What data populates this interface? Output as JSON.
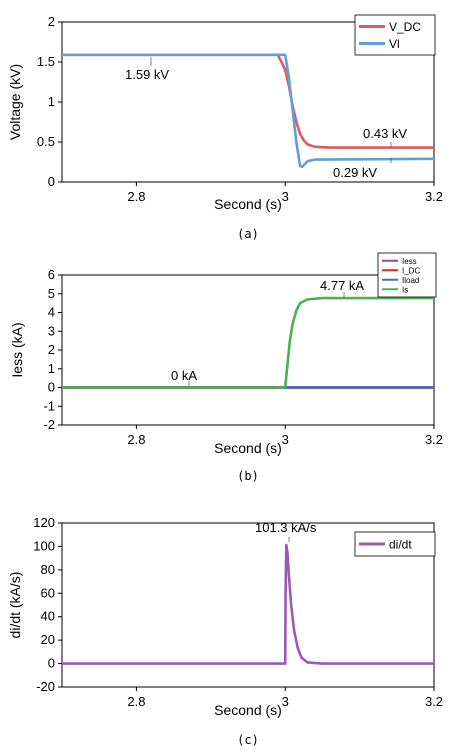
{
  "chart_data": [
    {
      "type": "line",
      "caption": "(a)",
      "xlabel": "Second (s)",
      "ylabel": "Voltage (kV)",
      "xlim": [
        2.7,
        3.2
      ],
      "ylim": [
        0,
        2
      ],
      "xticks": [
        2.8,
        3,
        3.2
      ],
      "yticks": [
        0,
        0.5,
        1,
        1.5,
        2
      ],
      "legend_position": "top-right",
      "series": [
        {
          "name": "V_DC",
          "color": "#e05a5a",
          "points": [
            [
              2.7,
              1.59
            ],
            [
              2.99,
              1.59
            ],
            [
              2.995,
              1.5
            ],
            [
              3.0,
              1.4
            ],
            [
              3.005,
              1.2
            ],
            [
              3.01,
              0.95
            ],
            [
              3.015,
              0.75
            ],
            [
              3.02,
              0.6
            ],
            [
              3.025,
              0.52
            ],
            [
              3.03,
              0.47
            ],
            [
              3.04,
              0.44
            ],
            [
              3.06,
              0.43
            ],
            [
              3.2,
              0.43
            ]
          ]
        },
        {
          "name": "Vl",
          "color": "#5f9fd6",
          "points": [
            [
              2.7,
              1.59
            ],
            [
              3.0,
              1.59
            ],
            [
              3.005,
              1.3
            ],
            [
              3.01,
              0.9
            ],
            [
              3.015,
              0.5
            ],
            [
              3.02,
              0.2
            ],
            [
              3.023,
              0.19
            ],
            [
              3.03,
              0.26
            ],
            [
              3.04,
              0.28
            ],
            [
              3.2,
              0.29
            ]
          ]
        }
      ],
      "annotations": [
        {
          "text": "1.59 kV",
          "x": 2.745,
          "y": 1.59
        },
        {
          "text": "0.43 kV",
          "x": 3.1,
          "y": 0.43
        },
        {
          "text": "0.29 kV",
          "x": 3.1,
          "y": 0.29
        }
      ]
    },
    {
      "type": "line",
      "caption": "(b)",
      "xlabel": "Second (s)",
      "ylabel": "Iess (kA)",
      "xlim": [
        2.7,
        3.2
      ],
      "ylim": [
        -2,
        6
      ],
      "xticks": [
        2.8,
        3,
        3.2
      ],
      "yticks": [
        -2,
        -1,
        0,
        1,
        2,
        3,
        4,
        5,
        6
      ],
      "legend_position": "top-right",
      "series": [
        {
          "name": "Iess",
          "color": "#8e44ad",
          "points": [
            [
              2.7,
              0
            ],
            [
              3.2,
              0
            ]
          ]
        },
        {
          "name": "I_DC",
          "color": "#d62728",
          "points": [
            [
              2.7,
              0
            ],
            [
              3.2,
              0
            ]
          ]
        },
        {
          "name": "Iload",
          "color": "#3a6fc4",
          "points": [
            [
              2.7,
              0
            ],
            [
              3.2,
              0
            ]
          ]
        },
        {
          "name": "Is",
          "color": "#4caf50",
          "points": [
            [
              2.7,
              0
            ],
            [
              3.0,
              0
            ],
            [
              3.003,
              1.2
            ],
            [
              3.006,
              2.4
            ],
            [
              3.01,
              3.4
            ],
            [
              3.015,
              4.1
            ],
            [
              3.02,
              4.5
            ],
            [
              3.03,
              4.7
            ],
            [
              3.05,
              4.77
            ],
            [
              3.2,
              4.77
            ]
          ]
        }
      ],
      "annotations": [
        {
          "text": "0 kA",
          "x": 2.87,
          "y": 0
        },
        {
          "text": "4.77 kA",
          "x": 3.075,
          "y": 4.77
        }
      ]
    },
    {
      "type": "line",
      "caption": "(c)",
      "xlabel": "Second (s)",
      "ylabel": "di/dt (kA/s)",
      "xlim": [
        2.7,
        3.2
      ],
      "ylim": [
        -20,
        120
      ],
      "xticks": [
        2.8,
        3,
        3.2
      ],
      "yticks": [
        -20,
        0,
        20,
        40,
        60,
        80,
        100,
        120
      ],
      "legend_position": "top-right",
      "series": [
        {
          "name": "di/dt",
          "color": "#9b59b6",
          "points": [
            [
              2.7,
              0
            ],
            [
              3.0,
              0
            ],
            [
              3.0005,
              60
            ],
            [
              3.0015,
              101.3
            ],
            [
              3.003,
              95
            ],
            [
              3.005,
              75
            ],
            [
              3.008,
              50
            ],
            [
              3.012,
              28
            ],
            [
              3.017,
              13
            ],
            [
              3.022,
              5
            ],
            [
              3.03,
              1
            ],
            [
              3.05,
              0
            ],
            [
              3.2,
              0
            ]
          ]
        }
      ],
      "annotations": [
        {
          "text": "101.3 kA/s",
          "x": 3.0015,
          "y": 101.3
        }
      ]
    }
  ]
}
